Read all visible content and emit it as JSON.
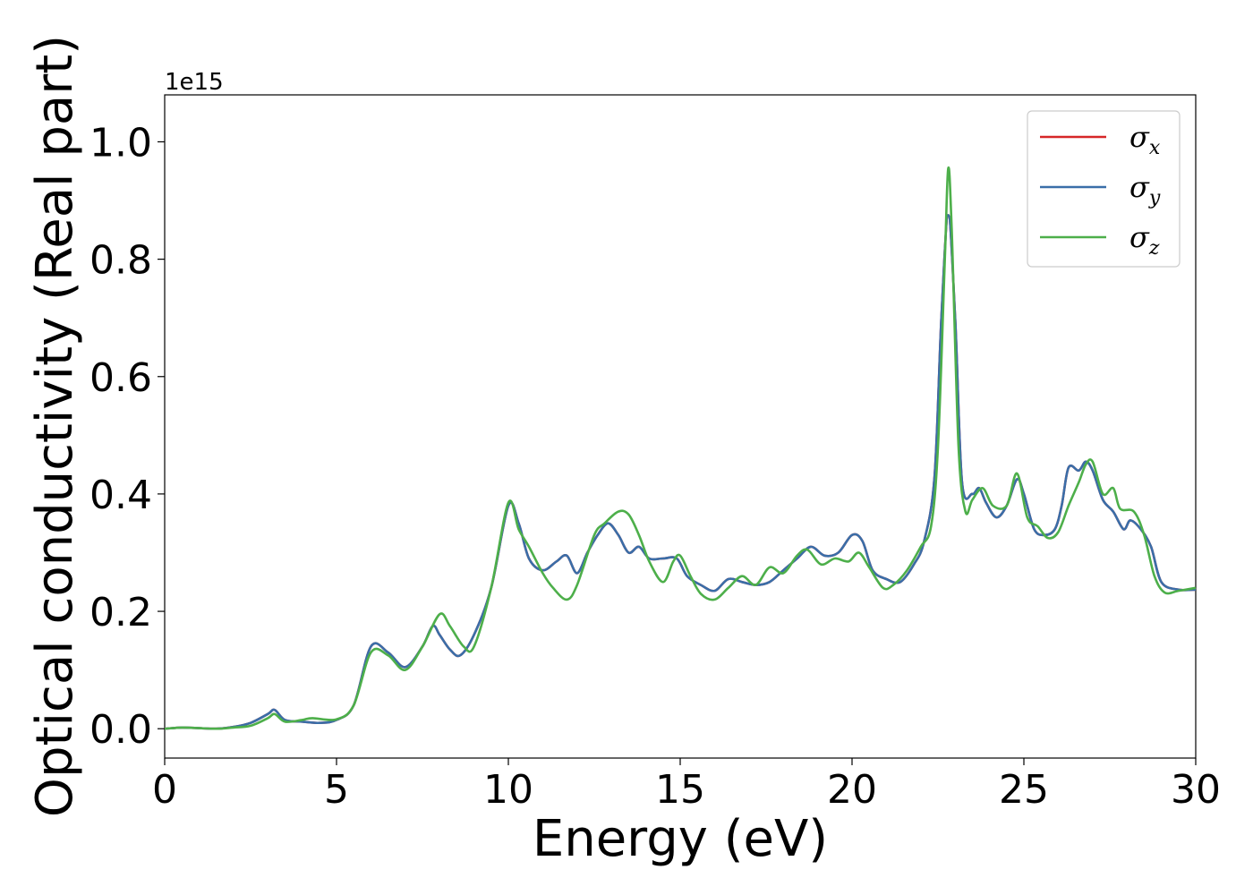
{
  "chart_data": {
    "type": "line",
    "title": "",
    "xlabel": "Energy (eV)",
    "ylabel": "Optical conductivity (Real part)",
    "y_offset_label": "1e15",
    "xlim": [
      0,
      30
    ],
    "ylim": [
      -0.05,
      1.08
    ],
    "x_ticks": [
      0,
      5,
      10,
      15,
      20,
      25,
      30
    ],
    "x_tick_labels": [
      "0",
      "5",
      "10",
      "15",
      "20",
      "25",
      "30"
    ],
    "y_ticks": [
      0.0,
      0.2,
      0.4,
      0.6,
      0.8,
      1.0
    ],
    "y_tick_labels": [
      "0.0",
      "0.2",
      "0.4",
      "0.6",
      "0.8",
      "1.0"
    ],
    "grid": false,
    "legend_position": "top-right",
    "series": [
      {
        "name": "σx",
        "legend_base": "σ",
        "legend_sub": "x",
        "color": "#d62728",
        "x": [
          0,
          0.5,
          1,
          1.5,
          2,
          2.5,
          3,
          3.2,
          3.5,
          4,
          4.5,
          5,
          5.5,
          6,
          6.5,
          7,
          7.5,
          7.8,
          8,
          8.3,
          8.6,
          9,
          9.5,
          10,
          10.3,
          10.6,
          11,
          11.4,
          11.7,
          12,
          12.3,
          12.6,
          12.9,
          13.2,
          13.5,
          13.8,
          14.1,
          14.5,
          14.9,
          15.2,
          15.6,
          16,
          16.4,
          16.8,
          17.2,
          17.6,
          18,
          18.4,
          18.8,
          19.2,
          19.6,
          20,
          20.3,
          20.6,
          21,
          21.4,
          21.8,
          22.1,
          22.4,
          22.6,
          22.8,
          23,
          23.2,
          23.5,
          23.7,
          23.9,
          24.2,
          24.5,
          24.8,
          25,
          25.3,
          25.6,
          25.9,
          26.1,
          26.3,
          26.6,
          26.8,
          27,
          27.3,
          27.6,
          27.9,
          28.1,
          28.4,
          28.7,
          29,
          29.5,
          30
        ],
        "y": [
          0.0,
          0.002,
          0.001,
          0.0,
          0.003,
          0.01,
          0.025,
          0.032,
          0.015,
          0.012,
          0.01,
          0.015,
          0.04,
          0.14,
          0.13,
          0.105,
          0.14,
          0.175,
          0.16,
          0.135,
          0.125,
          0.16,
          0.24,
          0.38,
          0.35,
          0.29,
          0.27,
          0.285,
          0.295,
          0.265,
          0.3,
          0.33,
          0.35,
          0.33,
          0.3,
          0.31,
          0.29,
          0.29,
          0.29,
          0.26,
          0.245,
          0.235,
          0.255,
          0.25,
          0.245,
          0.25,
          0.27,
          0.29,
          0.31,
          0.295,
          0.3,
          0.33,
          0.32,
          0.27,
          0.255,
          0.25,
          0.28,
          0.32,
          0.43,
          0.7,
          0.875,
          0.7,
          0.42,
          0.4,
          0.41,
          0.385,
          0.36,
          0.38,
          0.425,
          0.4,
          0.34,
          0.33,
          0.34,
          0.38,
          0.445,
          0.44,
          0.455,
          0.44,
          0.39,
          0.37,
          0.34,
          0.355,
          0.34,
          0.31,
          0.25,
          0.237,
          0.237
        ]
      },
      {
        "name": "σy",
        "legend_base": "σ",
        "legend_sub": "y",
        "color": "#3a6ea8",
        "x": [
          0,
          0.5,
          1,
          1.5,
          2,
          2.5,
          3,
          3.2,
          3.5,
          4,
          4.5,
          5,
          5.5,
          6,
          6.5,
          7,
          7.5,
          7.8,
          8,
          8.3,
          8.6,
          9,
          9.5,
          10,
          10.3,
          10.6,
          11,
          11.4,
          11.7,
          12,
          12.3,
          12.6,
          12.9,
          13.2,
          13.5,
          13.8,
          14.1,
          14.5,
          14.9,
          15.2,
          15.6,
          16,
          16.4,
          16.8,
          17.2,
          17.6,
          18,
          18.4,
          18.8,
          19.2,
          19.6,
          20,
          20.3,
          20.6,
          21,
          21.4,
          21.8,
          22.1,
          22.4,
          22.6,
          22.8,
          23,
          23.2,
          23.5,
          23.7,
          23.9,
          24.2,
          24.5,
          24.8,
          25,
          25.3,
          25.6,
          25.9,
          26.1,
          26.3,
          26.6,
          26.8,
          27,
          27.3,
          27.6,
          27.9,
          28.1,
          28.4,
          28.7,
          29,
          29.5,
          30
        ],
        "y": [
          0.0,
          0.002,
          0.001,
          0.0,
          0.003,
          0.01,
          0.025,
          0.032,
          0.015,
          0.012,
          0.01,
          0.015,
          0.04,
          0.14,
          0.13,
          0.105,
          0.14,
          0.175,
          0.16,
          0.135,
          0.125,
          0.16,
          0.24,
          0.38,
          0.35,
          0.29,
          0.27,
          0.285,
          0.295,
          0.265,
          0.3,
          0.33,
          0.35,
          0.33,
          0.3,
          0.31,
          0.29,
          0.29,
          0.29,
          0.26,
          0.245,
          0.235,
          0.255,
          0.25,
          0.245,
          0.25,
          0.27,
          0.29,
          0.31,
          0.295,
          0.3,
          0.33,
          0.32,
          0.27,
          0.255,
          0.25,
          0.28,
          0.32,
          0.43,
          0.7,
          0.875,
          0.7,
          0.42,
          0.4,
          0.41,
          0.385,
          0.36,
          0.38,
          0.425,
          0.4,
          0.34,
          0.33,
          0.34,
          0.38,
          0.445,
          0.44,
          0.455,
          0.44,
          0.39,
          0.37,
          0.34,
          0.355,
          0.34,
          0.31,
          0.25,
          0.237,
          0.237
        ]
      },
      {
        "name": "σz",
        "legend_base": "σ",
        "legend_sub": "z",
        "color": "#4daf4a",
        "x": [
          0,
          0.5,
          1,
          1.5,
          2,
          2.5,
          3,
          3.2,
          3.5,
          4,
          4.3,
          5,
          5.5,
          6,
          6.5,
          7,
          7.5,
          8,
          8.3,
          8.7,
          9,
          9.5,
          10,
          10.3,
          10.6,
          11,
          11.3,
          11.7,
          12,
          12.5,
          12.8,
          13.2,
          13.5,
          13.8,
          14.1,
          14.5,
          14.8,
          15,
          15.3,
          15.6,
          16,
          16.4,
          16.8,
          17.2,
          17.6,
          18,
          18.4,
          18.7,
          19.1,
          19.5,
          19.9,
          20.2,
          20.5,
          20.9,
          21.2,
          21.6,
          22,
          22.3,
          22.5,
          22.7,
          22.8,
          22.9,
          23.1,
          23.3,
          23.5,
          23.8,
          24.1,
          24.5,
          24.8,
          25.1,
          25.4,
          25.7,
          26,
          26.3,
          26.6,
          26.8,
          27,
          27.3,
          27.6,
          27.8,
          28.2,
          28.5,
          28.8,
          29.1,
          29.5,
          30
        ],
        "y": [
          0.0,
          0.002,
          0.001,
          0.0,
          0.002,
          0.005,
          0.018,
          0.025,
          0.012,
          0.015,
          0.018,
          0.016,
          0.04,
          0.13,
          0.125,
          0.1,
          0.14,
          0.195,
          0.175,
          0.14,
          0.14,
          0.24,
          0.385,
          0.34,
          0.31,
          0.265,
          0.24,
          0.22,
          0.245,
          0.33,
          0.35,
          0.37,
          0.365,
          0.33,
          0.285,
          0.25,
          0.285,
          0.295,
          0.26,
          0.23,
          0.22,
          0.24,
          0.26,
          0.245,
          0.275,
          0.265,
          0.295,
          0.305,
          0.28,
          0.29,
          0.285,
          0.3,
          0.275,
          0.24,
          0.245,
          0.27,
          0.31,
          0.345,
          0.48,
          0.8,
          0.955,
          0.85,
          0.48,
          0.37,
          0.39,
          0.41,
          0.38,
          0.38,
          0.435,
          0.36,
          0.345,
          0.325,
          0.335,
          0.38,
          0.42,
          0.45,
          0.455,
          0.4,
          0.41,
          0.375,
          0.37,
          0.33,
          0.26,
          0.232,
          0.235,
          0.24
        ]
      }
    ]
  }
}
